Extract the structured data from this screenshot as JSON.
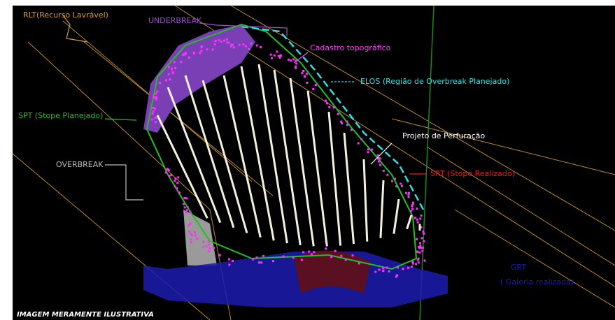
{
  "labels": {
    "rlt": "RLT(Recurso Lavrável)",
    "underbreak": "UNDERBREAK",
    "cadastro": "Cadastro topográfico",
    "elos": "ELOS (Região de Overbreak Planejado)",
    "spt": "SPT (Stope Planejado)",
    "projeto": "Projeto de Perfuração",
    "overbreak": "OVERBREAK",
    "srt": "SRT (Stope Realizado)",
    "grt": "GRT",
    "galeria": "( Galeria realizada)",
    "footer": "IMAGEM MERAMENTE ILUSTRATIVA"
  }
}
